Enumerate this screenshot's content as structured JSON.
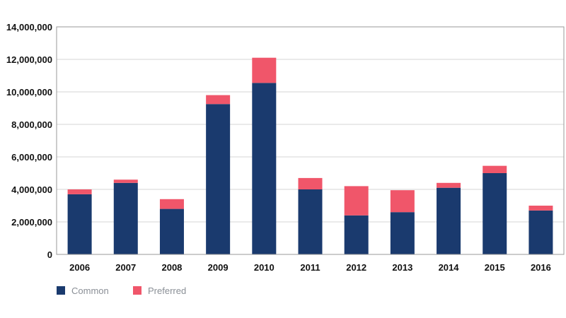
{
  "chart_data": {
    "type": "bar",
    "stacked": true,
    "categories": [
      "2006",
      "2007",
      "2008",
      "2009",
      "2010",
      "2011",
      "2012",
      "2013",
      "2014",
      "2015",
      "2016"
    ],
    "series": [
      {
        "name": "Common",
        "color": "#1a3a6e",
        "values": [
          3700000,
          4400000,
          2800000,
          9250000,
          10550000,
          4000000,
          2400000,
          2600000,
          4100000,
          5000000,
          2700000
        ]
      },
      {
        "name": "Preferred",
        "color": "#f0566a",
        "values": [
          300000,
          200000,
          600000,
          550000,
          1550000,
          700000,
          1800000,
          1350000,
          300000,
          450000,
          300000
        ]
      }
    ],
    "ylim": [
      0,
      14000000
    ],
    "yticks": [
      0,
      2000000,
      4000000,
      6000000,
      8000000,
      10000000,
      12000000,
      14000000
    ],
    "ytick_labels": [
      "0",
      "2,000,000",
      "4,000,000",
      "6,000,000",
      "8,000,000",
      "10,000,000",
      "12,000,000",
      "14,000,000"
    ],
    "grid": true,
    "legend_position": "bottom-left"
  }
}
